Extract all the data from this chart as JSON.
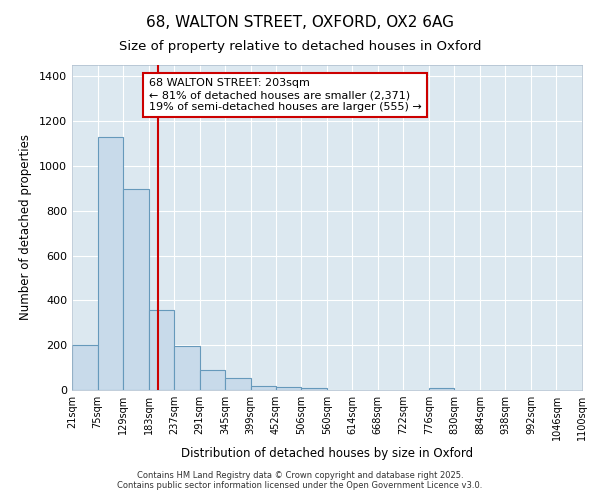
{
  "title1": "68, WALTON STREET, OXFORD, OX2 6AG",
  "title2": "Size of property relative to detached houses in Oxford",
  "xlabel": "Distribution of detached houses by size in Oxford",
  "ylabel": "Number of detached properties",
  "bin_edges": [
    21,
    75,
    129,
    183,
    237,
    291,
    345,
    399,
    452,
    506,
    560,
    614,
    668,
    722,
    776,
    830,
    884,
    938,
    992,
    1046,
    1100
  ],
  "bar_heights": [
    200,
    1130,
    895,
    355,
    195,
    90,
    55,
    20,
    15,
    10,
    0,
    0,
    0,
    0,
    10,
    0,
    0,
    0,
    0,
    0
  ],
  "bar_color": "#c8daea",
  "bar_edge_color": "#6699bb",
  "fig_bg_color": "#ffffff",
  "ax_bg_color": "#dce8f0",
  "grid_color": "#ffffff",
  "red_line_x": 203,
  "red_line_color": "#cc0000",
  "annotation_text": "68 WALTON STREET: 203sqm\n← 81% of detached houses are smaller (2,371)\n19% of semi-detached houses are larger (555) →",
  "annotation_box_edge": "#cc0000",
  "annotation_box_face": "#ffffff",
  "ylim": [
    0,
    1450
  ],
  "yticks": [
    0,
    200,
    400,
    600,
    800,
    1000,
    1200,
    1400
  ],
  "footnote1": "Contains HM Land Registry data © Crown copyright and database right 2025.",
  "footnote2": "Contains public sector information licensed under the Open Government Licence v3.0."
}
